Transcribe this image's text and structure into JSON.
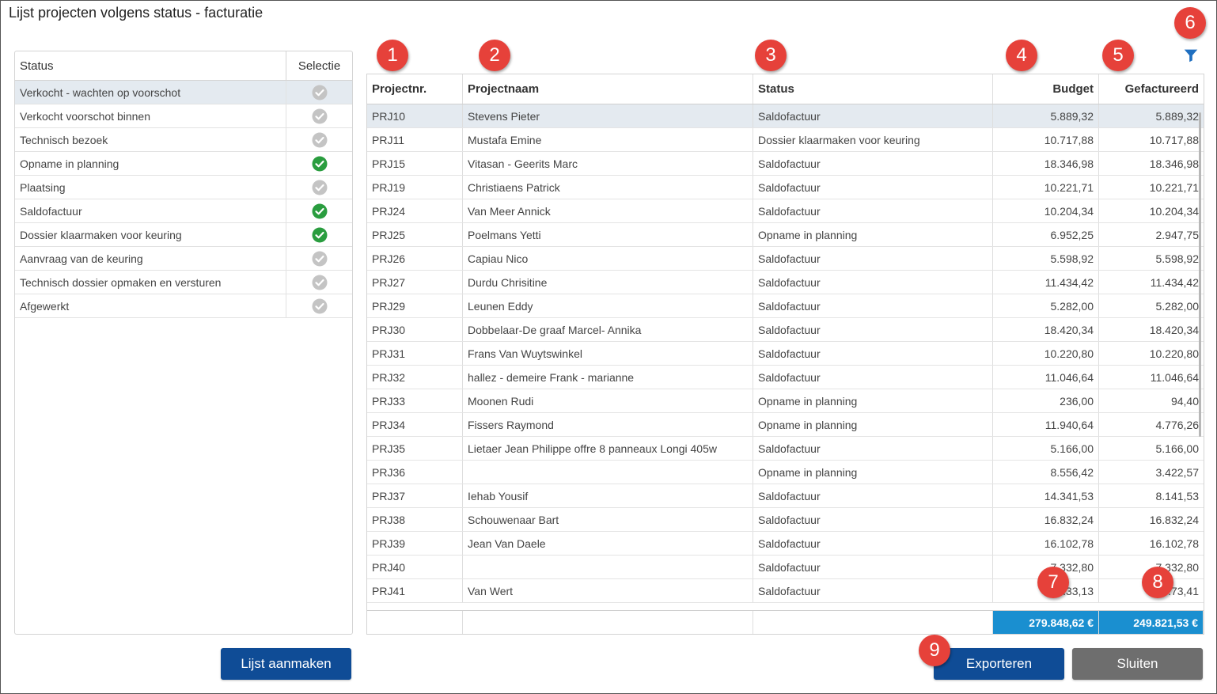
{
  "title": "Lijst projecten volgens status - facturatie",
  "status_panel": {
    "headers": {
      "status": "Status",
      "selectie": "Selectie"
    },
    "items": [
      {
        "label": "Verkocht - wachten op voorschot",
        "selected": false,
        "highlighted": true
      },
      {
        "label": "Verkocht voorschot binnen",
        "selected": false,
        "highlighted": false
      },
      {
        "label": "Technisch bezoek",
        "selected": false,
        "highlighted": false
      },
      {
        "label": "Opname in planning",
        "selected": true,
        "highlighted": false
      },
      {
        "label": "Plaatsing",
        "selected": false,
        "highlighted": false
      },
      {
        "label": "Saldofactuur",
        "selected": true,
        "highlighted": false
      },
      {
        "label": "Dossier klaarmaken voor keuring",
        "selected": true,
        "highlighted": false
      },
      {
        "label": "Aanvraag van de keuring",
        "selected": false,
        "highlighted": false
      },
      {
        "label": "Technisch dossier opmaken en versturen",
        "selected": false,
        "highlighted": false
      },
      {
        "label": "Afgewerkt",
        "selected": false,
        "highlighted": false
      }
    ]
  },
  "table": {
    "headers": {
      "nr": "Projectnr.",
      "naam": "Projectnaam",
      "status": "Status",
      "budget": "Budget",
      "gefactureerd": "Gefactureerd"
    },
    "rows": [
      {
        "nr": "PRJ10",
        "naam": "Stevens Pieter",
        "status": "Saldofactuur",
        "budget": "5.889,32",
        "gefactureerd": "5.889,32"
      },
      {
        "nr": "PRJ11",
        "naam": "Mustafa Emine",
        "status": "Dossier klaarmaken voor keuring",
        "budget": "10.717,88",
        "gefactureerd": "10.717,88"
      },
      {
        "nr": "PRJ15",
        "naam": "Vitasan - Geerits Marc",
        "status": "Saldofactuur",
        "budget": "18.346,98",
        "gefactureerd": "18.346,98"
      },
      {
        "nr": "PRJ19",
        "naam": "Christiaens Patrick",
        "status": "Saldofactuur",
        "budget": "10.221,71",
        "gefactureerd": "10.221,71"
      },
      {
        "nr": "PRJ24",
        "naam": "Van Meer Annick",
        "status": "Saldofactuur",
        "budget": "10.204,34",
        "gefactureerd": "10.204,34"
      },
      {
        "nr": "PRJ25",
        "naam": "Poelmans Yetti",
        "status": "Opname in planning",
        "budget": "6.952,25",
        "gefactureerd": "2.947,75"
      },
      {
        "nr": "PRJ26",
        "naam": "Capiau Nico",
        "status": "Saldofactuur",
        "budget": "5.598,92",
        "gefactureerd": "5.598,92"
      },
      {
        "nr": "PRJ27",
        "naam": "Durdu Chrisitine",
        "status": "Saldofactuur",
        "budget": "11.434,42",
        "gefactureerd": "11.434,42"
      },
      {
        "nr": "PRJ29",
        "naam": "Leunen Eddy",
        "status": "Saldofactuur",
        "budget": "5.282,00",
        "gefactureerd": "5.282,00"
      },
      {
        "nr": "PRJ30",
        "naam": "Dobbelaar-De graaf Marcel- Annika",
        "status": "Saldofactuur",
        "budget": "18.420,34",
        "gefactureerd": "18.420,34"
      },
      {
        "nr": "PRJ31",
        "naam": "Frans Van Wuytswinkel",
        "status": "Saldofactuur",
        "budget": "10.220,80",
        "gefactureerd": "10.220,80"
      },
      {
        "nr": "PRJ32",
        "naam": "hallez - demeire Frank - marianne",
        "status": "Saldofactuur",
        "budget": "11.046,64",
        "gefactureerd": "11.046,64"
      },
      {
        "nr": "PRJ33",
        "naam": "Moonen Rudi",
        "status": "Opname in planning",
        "budget": "236,00",
        "gefactureerd": "94,40"
      },
      {
        "nr": "PRJ34",
        "naam": "Fissers Raymond",
        "status": "Opname in planning",
        "budget": "11.940,64",
        "gefactureerd": "4.776,26"
      },
      {
        "nr": "PRJ35",
        "naam": "Lietaer Jean Philippe offre 8 panneaux Longi 405w",
        "status": "Saldofactuur",
        "budget": "5.166,00",
        "gefactureerd": "5.166,00"
      },
      {
        "nr": "PRJ36",
        "naam": "",
        "status": "Opname in planning",
        "budget": "8.556,42",
        "gefactureerd": "3.422,57"
      },
      {
        "nr": "PRJ37",
        "naam": "Iehab Yousif",
        "status": "Saldofactuur",
        "budget": "14.341,53",
        "gefactureerd": "8.141,53"
      },
      {
        "nr": "PRJ38",
        "naam": "Schouwenaar Bart",
        "status": "Saldofactuur",
        "budget": "16.832,24",
        "gefactureerd": "16.832,24"
      },
      {
        "nr": "PRJ39",
        "naam": "Jean Van Daele",
        "status": "Saldofactuur",
        "budget": "16.102,78",
        "gefactureerd": "16.102,78"
      },
      {
        "nr": "PRJ40",
        "naam": "",
        "status": "Saldofactuur",
        "budget": "7.332,80",
        "gefactureerd": "7.332,80"
      },
      {
        "nr": "PRJ41",
        "naam": "Van Wert",
        "status": "Saldofactuur",
        "budget": "...33,13",
        "gefactureerd": "...73,41"
      }
    ],
    "totals": {
      "budget": "279.848,62 €",
      "gefactureerd": "249.821,53 €"
    }
  },
  "buttons": {
    "create": "Lijst aanmaken",
    "export": "Exporteren",
    "close": "Sluiten"
  },
  "callouts": [
    "1",
    "2",
    "3",
    "4",
    "5",
    "6",
    "7",
    "8",
    "9"
  ],
  "icons": {
    "filter": "filter-icon",
    "check": "check-circle-icon"
  },
  "colors": {
    "accent": "#0f4c96",
    "total_bg": "#1a8fd0",
    "check_on": "#2a9d3f",
    "check_off": "#c4c4c4",
    "badge": "#e6413a",
    "close_btn": "#6e6e6e"
  }
}
